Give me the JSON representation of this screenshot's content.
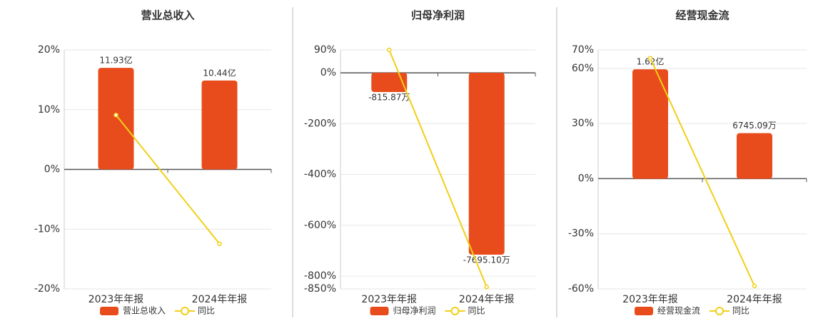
{
  "chart_data": [
    {
      "type": "bar",
      "title": "营业总收入",
      "categories": [
        "2023年年报",
        "2024年年报"
      ],
      "series": [
        {
          "name": "营业总收入",
          "color": "#e84c1c",
          "axis": "y2",
          "values": [
            1193000000,
            1044000000
          ],
          "value_labels": [
            "11.93亿",
            "10.44亿"
          ]
        },
        {
          "name": "同比",
          "color": "#f2cf17",
          "type": "line",
          "values": [
            9.1,
            -12.45
          ]
        }
      ],
      "ylim": [
        -20,
        20
      ],
      "yticks": [
        {
          "value": 20,
          "label": "20%"
        },
        {
          "value": 10,
          "label": "10%"
        },
        {
          "value": 0,
          "label": "0%"
        },
        {
          "value": -10,
          "label": "-10%"
        },
        {
          "value": -20,
          "label": "-20%"
        }
      ],
      "y2lim": [
        -1403000000,
        1403000000
      ],
      "grid": true
    },
    {
      "type": "bar",
      "title": "归母净利润",
      "categories": [
        "2023年年报",
        "2024年年报"
      ],
      "series": [
        {
          "name": "归母净利润",
          "color": "#e84c1c",
          "axis": "y2",
          "values": [
            -8158700,
            -76951000
          ],
          "value_labels": [
            "-815.87万",
            "-7695.10万"
          ]
        },
        {
          "name": "同比",
          "color": "#f2cf17",
          "type": "line",
          "values": [
            90,
            -842
          ]
        }
      ],
      "ylim": [
        -850,
        90
      ],
      "yticks": [
        {
          "value": 90,
          "label": "90%"
        },
        {
          "value": 0,
          "label": "0%"
        },
        {
          "value": -200,
          "label": "-200%"
        },
        {
          "value": -400,
          "label": "-400%"
        },
        {
          "value": -600,
          "label": "-600%"
        },
        {
          "value": -800,
          "label": "-800%"
        },
        {
          "value": -850,
          "label": "-850%"
        }
      ],
      "y2lim": [
        -91440000,
        9660000
      ],
      "grid": true
    },
    {
      "type": "bar",
      "title": "经营现金流",
      "categories": [
        "2023年年报",
        "2024年年报"
      ],
      "series": [
        {
          "name": "经营现金流",
          "color": "#e84c1c",
          "axis": "y2",
          "values": [
            162000000,
            67450900
          ],
          "value_labels": [
            "1.62亿",
            "6745.09万"
          ]
        },
        {
          "name": "同比",
          "color": "#f2cf17",
          "type": "line",
          "values": [
            65.5,
            -58.4
          ]
        }
      ],
      "ylim": [
        -60,
        70
      ],
      "yticks": [
        {
          "value": 70,
          "label": "70%"
        },
        {
          "value": 60,
          "label": "60%"
        },
        {
          "value": 30,
          "label": "30%"
        },
        {
          "value": 0,
          "label": "0%"
        },
        {
          "value": -30,
          "label": "-30%"
        },
        {
          "value": -60,
          "label": "-60%"
        }
      ],
      "y2lim": [
        -163000000,
        190600000
      ],
      "grid": true
    }
  ]
}
